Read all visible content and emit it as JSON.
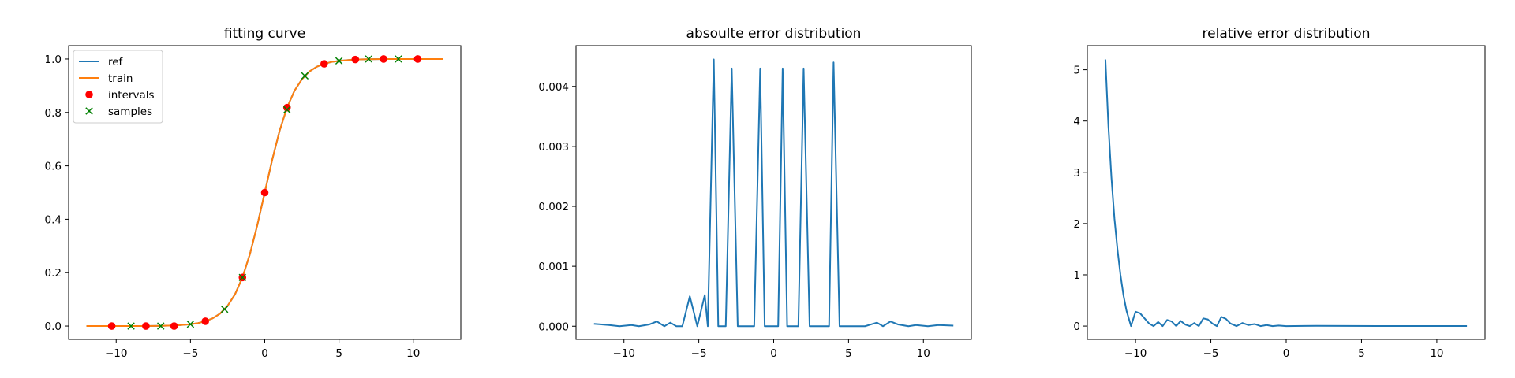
{
  "chart_data": [
    {
      "type": "line",
      "title": "fitting curve",
      "xlabel": "",
      "ylabel": "",
      "xlim": [
        -13.2,
        13.2
      ],
      "ylim": [
        -0.05,
        1.05
      ],
      "xticks": [
        -10,
        -5,
        0,
        5,
        10
      ],
      "xtick_labels": [
        "−10",
        "−5",
        "0",
        "5",
        "10"
      ],
      "yticks": [
        0.0,
        0.2,
        0.4,
        0.6,
        0.8,
        1.0
      ],
      "ytick_labels": [
        "0.0",
        "0.2",
        "0.4",
        "0.6",
        "0.8",
        "1.0"
      ],
      "legend_position": "top-left",
      "series": [
        {
          "name": "ref",
          "kind": "line",
          "color": "#1f77b4",
          "x": [
            -12,
            -11,
            -10,
            -9,
            -8,
            -7,
            -6,
            -5,
            -4.5,
            -4,
            -3.5,
            -3,
            -2.5,
            -2,
            -1.5,
            -1,
            -0.5,
            0,
            0.5,
            1,
            1.5,
            2,
            2.5,
            3,
            3.5,
            4,
            4.5,
            5,
            6,
            7,
            8,
            9,
            10,
            11,
            12
          ],
          "y": [
            0.0,
            0.0,
            0.0,
            0.0001,
            0.0003,
            0.0009,
            0.0025,
            0.0067,
            0.011,
            0.018,
            0.029,
            0.047,
            0.076,
            0.119,
            0.182,
            0.269,
            0.378,
            0.5,
            0.622,
            0.731,
            0.818,
            0.881,
            0.924,
            0.953,
            0.971,
            0.982,
            0.989,
            0.993,
            0.998,
            0.999,
            1.0,
            1.0,
            1.0,
            1.0,
            1.0
          ]
        },
        {
          "name": "train",
          "kind": "line",
          "color": "#ff7f0e",
          "x": [
            -12,
            -11,
            -10,
            -9,
            -8,
            -7,
            -6,
            -5,
            -4.5,
            -4,
            -3.5,
            -3,
            -2.5,
            -2,
            -1.5,
            -1,
            -0.5,
            0,
            0.5,
            1,
            1.5,
            2,
            2.5,
            3,
            3.5,
            4,
            4.5,
            5,
            6,
            7,
            8,
            9,
            10,
            11,
            12
          ],
          "y": [
            0.0,
            0.0,
            0.0,
            0.0001,
            0.0003,
            0.0009,
            0.0025,
            0.0067,
            0.011,
            0.018,
            0.029,
            0.047,
            0.076,
            0.119,
            0.182,
            0.269,
            0.378,
            0.5,
            0.622,
            0.731,
            0.818,
            0.881,
            0.924,
            0.953,
            0.971,
            0.982,
            0.989,
            0.993,
            0.998,
            0.999,
            1.0,
            1.0,
            1.0,
            1.0,
            1.0
          ]
        },
        {
          "name": "intervals",
          "kind": "points",
          "marker": "circle",
          "color": "#ff0000",
          "x": [
            -10.3,
            -8,
            -6.1,
            -4,
            -1.5,
            0,
            1.5,
            4,
            6.1,
            8,
            10.3
          ],
          "y": [
            0.0,
            0.0,
            0.0,
            0.018,
            0.182,
            0.5,
            0.818,
            0.982,
            0.998,
            1.0,
            1.0
          ]
        },
        {
          "name": "samples",
          "kind": "points",
          "marker": "x",
          "color": "#008000",
          "x": [
            -9,
            -7,
            -5,
            -2.7,
            -1.5,
            1.5,
            2.7,
            5,
            7,
            9
          ],
          "y": [
            0.0,
            0.0,
            0.007,
            0.063,
            0.182,
            0.81,
            0.937,
            0.993,
            1.0,
            1.0
          ]
        }
      ]
    },
    {
      "type": "line",
      "title": "absoulte error distribution",
      "xlabel": "",
      "ylabel": "",
      "xlim": [
        -13.2,
        13.2
      ],
      "ylim": [
        -0.00022,
        0.00468
      ],
      "xticks": [
        -10,
        -5,
        0,
        5,
        10
      ],
      "xtick_labels": [
        "−10",
        "−5",
        "0",
        "5",
        "10"
      ],
      "yticks": [
        0.0,
        0.001,
        0.002,
        0.003,
        0.004
      ],
      "ytick_labels": [
        "0.000",
        "0.001",
        "0.002",
        "0.003",
        "0.004"
      ],
      "series": [
        {
          "name": "",
          "kind": "line",
          "color": "#1f77b4",
          "x": [
            -12,
            -11,
            -10.3,
            -9.5,
            -9,
            -8.3,
            -7.8,
            -7.3,
            -6.9,
            -6.5,
            -6.1,
            -5.6,
            -5.1,
            -4.6,
            -4.4,
            -4.0,
            -3.7,
            -3.45,
            -3.2,
            -2.8,
            -2.4,
            -2.0,
            -1.65,
            -1.5,
            -1.3,
            -0.9,
            -0.6,
            -0.3,
            -0.1,
            0.0,
            0.1,
            0.3,
            0.6,
            0.9,
            1.3,
            1.5,
            1.65,
            2.0,
            2.4,
            2.8,
            3.2,
            3.45,
            3.7,
            4.0,
            4.4,
            4.6,
            5.1,
            5.6,
            6.1,
            6.5,
            6.9,
            7.3,
            7.8,
            8.3,
            9.0,
            9.5,
            10.3,
            11,
            12
          ],
          "y": [
            4e-05,
            2e-05,
            0.0,
            2e-05,
            0.0,
            3e-05,
            8e-05,
            0.0,
            6e-05,
            0.0,
            0.0,
            0.0005,
            0.0,
            0.00052,
            0.0,
            0.00445,
            0.0,
            0.0,
            0.0,
            0.0043,
            0.0,
            0.0,
            0.0,
            0.0,
            0.0,
            0.0043,
            0.0,
            0.0,
            0.0,
            0.0,
            0.0,
            0.0,
            0.0043,
            0.0,
            0.0,
            0.0,
            0.0,
            0.0043,
            0.0,
            0.0,
            0.0,
            0.0,
            0.0,
            0.0044,
            0.0,
            0.0,
            0.0,
            0.0,
            0.0,
            3e-05,
            6e-05,
            0.0,
            8e-05,
            3e-05,
            0.0,
            2e-05,
            0.0,
            2e-05,
            1e-05
          ]
        }
      ]
    },
    {
      "type": "line",
      "title": "relative error distribution",
      "xlabel": "",
      "ylabel": "",
      "xlim": [
        -13.2,
        13.2
      ],
      "ylim": [
        -0.26,
        5.47
      ],
      "xticks": [
        -10,
        -5,
        0,
        5,
        10
      ],
      "xtick_labels": [
        "−10",
        "−5",
        "0",
        "5",
        "10"
      ],
      "yticks": [
        0,
        1,
        2,
        3,
        4,
        5
      ],
      "ytick_labels": [
        "0",
        "1",
        "2",
        "3",
        "4",
        "5"
      ],
      "series": [
        {
          "name": "",
          "kind": "line",
          "color": "#1f77b4",
          "x": [
            -12,
            -11.8,
            -11.6,
            -11.4,
            -11.2,
            -11.0,
            -10.8,
            -10.6,
            -10.3,
            -10.0,
            -9.7,
            -9.4,
            -9.1,
            -8.8,
            -8.5,
            -8.2,
            -7.9,
            -7.6,
            -7.3,
            -7.0,
            -6.7,
            -6.4,
            -6.1,
            -5.8,
            -5.5,
            -5.2,
            -4.9,
            -4.6,
            -4.3,
            -4.0,
            -3.7,
            -3.3,
            -2.9,
            -2.5,
            -2.1,
            -1.7,
            -1.3,
            -0.9,
            -0.5,
            0,
            2,
            4,
            6,
            8,
            10,
            12
          ],
          "y": [
            5.2,
            3.9,
            2.9,
            2.1,
            1.5,
            1.0,
            0.6,
            0.3,
            0.0,
            0.28,
            0.25,
            0.15,
            0.05,
            0.0,
            0.08,
            0.0,
            0.12,
            0.09,
            0.0,
            0.1,
            0.03,
            0.0,
            0.06,
            0.0,
            0.15,
            0.13,
            0.05,
            0.0,
            0.18,
            0.14,
            0.05,
            0.0,
            0.06,
            0.02,
            0.04,
            0.0,
            0.02,
            0.0,
            0.01,
            0.0,
            0.005,
            0.003,
            0.002,
            0.001,
            0.001,
            0.001
          ]
        }
      ]
    }
  ]
}
